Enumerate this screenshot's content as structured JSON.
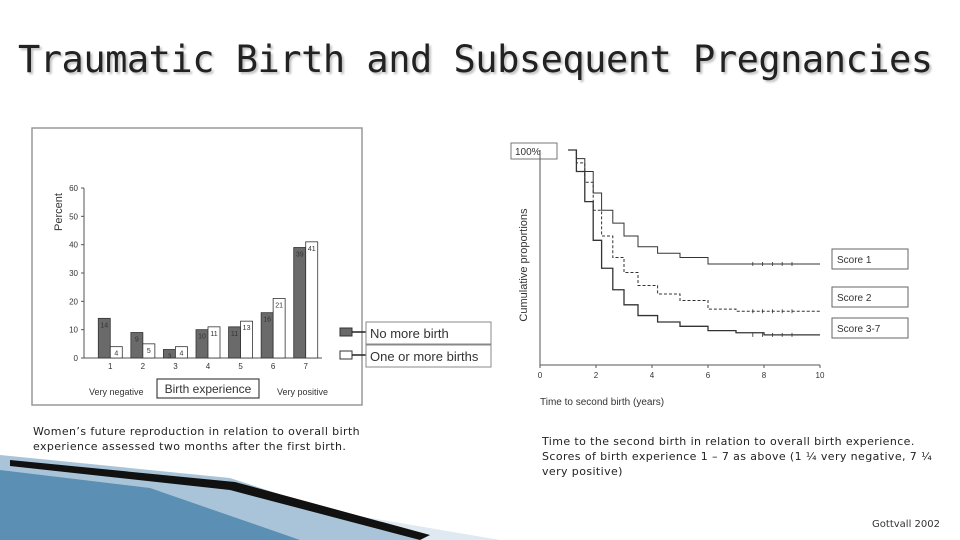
{
  "slide": {
    "title": "Traumatic Birth and Subsequent Pregnancies",
    "caption_left": "Women’s future reproduction in relation to overall birth experience assessed two months after the first birth.",
    "caption_right": "Time to the second birth in relation to overall birth experience. Scores of birth experience 1 – 7 as above (1 ¼ very negative, 7 ¼ very positive)",
    "credit": "Gottvall 2002"
  },
  "colors": {
    "dark_bar": "#6a6a6a",
    "light_bar": "#ffffff",
    "frame": "#999999",
    "accent_blue": "#5b8fb4"
  },
  "chart_data": [
    {
      "type": "bar",
      "ylabel": "Percent",
      "xlabel": "Birth experience",
      "x_end_labels": {
        "left": "Very negative",
        "right": "Very positive"
      },
      "ylim": [
        0,
        60
      ],
      "yticks": [
        0,
        10,
        20,
        30,
        40,
        50,
        60
      ],
      "categories": [
        "1",
        "2",
        "3",
        "4",
        "5",
        "6",
        "7"
      ],
      "series": [
        {
          "name": "No more birth",
          "values": [
            14,
            9,
            3,
            10,
            11,
            16,
            39
          ]
        },
        {
          "name": "One or more births",
          "values": [
            4,
            5,
            4,
            11,
            13,
            21,
            41
          ]
        }
      ],
      "legend": "right"
    },
    {
      "type": "line",
      "ylabel": "Cumulative proportions",
      "xlabel": "Time to second birth (years)",
      "y_top_label": "100%",
      "xlim": [
        0,
        10
      ],
      "xticks": [
        0,
        2,
        4,
        6,
        8,
        10
      ],
      "series": [
        {
          "name": "Score 1",
          "x": [
            1.0,
            1.3,
            1.6,
            1.9,
            2.2,
            2.6,
            3.0,
            3.5,
            4.2,
            5.0,
            6.0,
            7.0,
            8.0,
            10.0
          ],
          "y": [
            1.0,
            0.96,
            0.9,
            0.8,
            0.72,
            0.66,
            0.6,
            0.55,
            0.52,
            0.5,
            0.47,
            0.47,
            0.47,
            0.47
          ]
        },
        {
          "name": "Score 2",
          "x": [
            1.0,
            1.3,
            1.6,
            1.9,
            2.2,
            2.6,
            3.0,
            3.5,
            4.2,
            5.0,
            6.0,
            7.0,
            8.0,
            10.0
          ],
          "y": [
            1.0,
            0.94,
            0.85,
            0.72,
            0.6,
            0.5,
            0.43,
            0.37,
            0.33,
            0.3,
            0.26,
            0.25,
            0.25,
            0.25
          ]
        },
        {
          "name": "Score 3-7",
          "x": [
            1.0,
            1.3,
            1.6,
            1.9,
            2.2,
            2.6,
            3.0,
            3.5,
            4.2,
            5.0,
            6.0,
            7.0,
            8.0,
            10.0
          ],
          "y": [
            1.0,
            0.9,
            0.76,
            0.58,
            0.45,
            0.35,
            0.28,
            0.23,
            0.2,
            0.18,
            0.16,
            0.15,
            0.14,
            0.14
          ]
        }
      ],
      "legend": "right"
    }
  ]
}
